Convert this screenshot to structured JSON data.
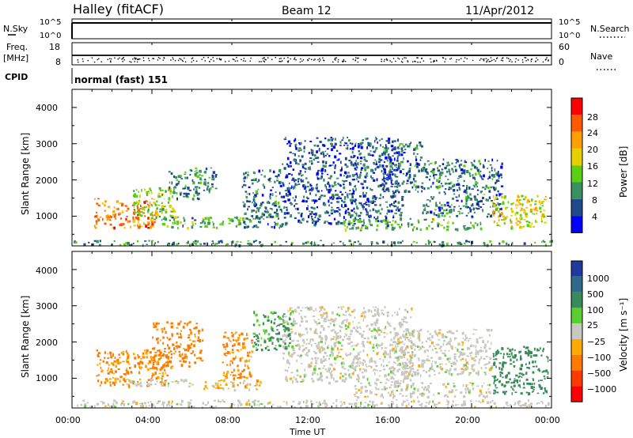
{
  "header": {
    "station": "Halley (fitACF)",
    "beam": "Beam 12",
    "date": "11/Apr/2012"
  },
  "strips": {
    "nsky_label": "N.Sky",
    "nsky_ticks": [
      "10^5",
      "10^0"
    ],
    "nsearch_label": "N.Search",
    "nsearch_ticks": [
      "10^5",
      "10^0"
    ],
    "freq_label": "Freq.",
    "freq_unit": "[MHz]",
    "freq_ticks": [
      "18",
      "8"
    ],
    "nave_label": "Nave",
    "nave_ticks": [
      "60",
      "0"
    ],
    "cpid_label": "CPID",
    "cpid_text": "normal (fast) 151"
  },
  "axes": {
    "y_label": "Slant Range [km]",
    "y_ticks": [
      "4000",
      "3000",
      "2000",
      "1000"
    ],
    "x_ticks": [
      "00:00",
      "04:00",
      "08:00",
      "12:00",
      "16:00",
      "20:00",
      "00:00"
    ],
    "x_label": "Time UT"
  },
  "power_scale": {
    "label": "Power [dB]",
    "ticks": [
      "28",
      "24",
      "20",
      "16",
      "12",
      "8",
      "4"
    ],
    "colors": [
      "#ff0000",
      "#ff5a00",
      "#ffa000",
      "#e8d000",
      "#5ad010",
      "#3a9060",
      "#1f4a8a",
      "#0000ff"
    ]
  },
  "velocity_scale": {
    "label": "Velocity [m s⁻¹]",
    "ticks": [
      "1000",
      "500",
      "100",
      "25",
      "−25",
      "−100",
      "−500",
      "−1000"
    ],
    "colors": [
      "#1f3a9a",
      "#2f6a8a",
      "#3a8a5a",
      "#5ad030",
      "#c8c8c0",
      "#ffaa00",
      "#ff7a00",
      "#ff3a00",
      "#ff0000"
    ]
  },
  "chart_data": {
    "type": "heatmap",
    "x_range_hours": [
      0,
      24
    ],
    "y_range_km": [
      180,
      4500
    ],
    "power_clusters": [
      {
        "t0": 1.1,
        "t1": 4.2,
        "r0": 700,
        "r1": 1500,
        "val": 24
      },
      {
        "t0": 3.0,
        "t1": 5.2,
        "r0": 900,
        "r1": 1800,
        "val": 14
      },
      {
        "t0": 4.8,
        "t1": 6.3,
        "r0": 1500,
        "r1": 2300,
        "val": 10
      },
      {
        "t0": 6.0,
        "t1": 7.2,
        "r0": 1700,
        "r1": 2400,
        "val": 8
      },
      {
        "t0": 4.5,
        "t1": 9.5,
        "r0": 700,
        "r1": 1000,
        "val": 12
      },
      {
        "t0": 8.5,
        "t1": 10.5,
        "r0": 700,
        "r1": 2300,
        "val": 8
      },
      {
        "t0": 10.5,
        "t1": 16.5,
        "r0": 800,
        "r1": 3200,
        "val": 6
      },
      {
        "t0": 15.5,
        "t1": 17.5,
        "r0": 1700,
        "r1": 3100,
        "val": 8
      },
      {
        "t0": 13.5,
        "t1": 20.5,
        "r0": 650,
        "r1": 950,
        "val": 12
      },
      {
        "t0": 17.5,
        "t1": 21.5,
        "r0": 1000,
        "r1": 2600,
        "val": 8
      },
      {
        "t0": 21.0,
        "t1": 23.7,
        "r0": 700,
        "r1": 1600,
        "val": 18
      },
      {
        "t0": 0.0,
        "t1": 24.0,
        "r0": 220,
        "r1": 350,
        "val": 10
      }
    ],
    "velocity_clusters": [
      {
        "t0": 1.2,
        "t1": 4.8,
        "r0": 800,
        "r1": 1800,
        "val": -150
      },
      {
        "t0": 4.0,
        "t1": 6.5,
        "r0": 1300,
        "r1": 2600,
        "val": -200
      },
      {
        "t0": 2.5,
        "t1": 6.0,
        "r0": 800,
        "r1": 1000,
        "val": 0
      },
      {
        "t0": 6.5,
        "t1": 9.5,
        "r0": 700,
        "r1": 1000,
        "val": -60
      },
      {
        "t0": 7.5,
        "t1": 9.0,
        "r0": 1000,
        "r1": 2300,
        "val": -150
      },
      {
        "t0": 10.5,
        "t1": 17.0,
        "r0": 900,
        "r1": 3000,
        "val": 0
      },
      {
        "t0": 14.0,
        "t1": 21.0,
        "r0": 500,
        "r1": 900,
        "val": 0
      },
      {
        "t0": 16.0,
        "t1": 21.0,
        "r0": 1100,
        "r1": 2400,
        "val": 0
      },
      {
        "t0": 21.0,
        "t1": 23.8,
        "r0": 600,
        "r1": 1900,
        "val": 300
      },
      {
        "t0": 9.0,
        "t1": 11.0,
        "r0": 1800,
        "r1": 2900,
        "val": 150
      },
      {
        "t0": 0.0,
        "t1": 24.0,
        "r0": 220,
        "r1": 420,
        "val": 0
      }
    ]
  }
}
